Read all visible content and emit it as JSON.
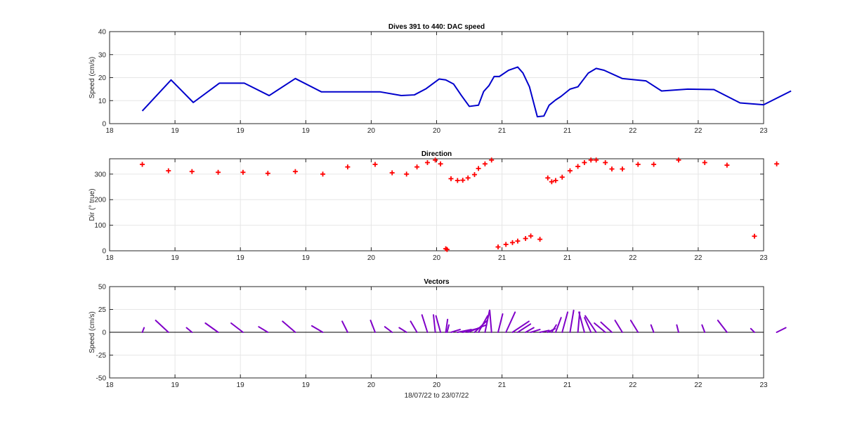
{
  "chart_data": [
    {
      "type": "line",
      "title": "Dives 391 to 440: DAC speed",
      "xlabel": "",
      "ylabel": "Speed (cm/s)",
      "xlim": [
        18.0,
        23.0
      ],
      "ylim": [
        0,
        40
      ],
      "xticks": [
        18,
        18.5,
        19,
        19.5,
        20,
        20.5,
        21,
        21.5,
        22,
        22.5,
        23
      ],
      "xtick_labels": [
        "18",
        "19",
        "19",
        "19",
        "20",
        "20",
        "21",
        "21",
        "22",
        "22",
        "23"
      ],
      "yticks": [
        0,
        10,
        20,
        30,
        40
      ],
      "ytick_labels": [
        "0",
        "10",
        "20",
        "30",
        "40"
      ],
      "grid": true,
      "colors": {
        "line": "#0000cc"
      },
      "series": [
        {
          "x": [
            18.25,
            18.47,
            18.64,
            18.84,
            19.03,
            19.22,
            19.42,
            19.62,
            19.85,
            20.07,
            20.23,
            20.33,
            20.42,
            20.52,
            20.57,
            20.63,
            20.69,
            20.75,
            20.82,
            20.86,
            20.9,
            20.94,
            20.98,
            21.05,
            21.09,
            21.12,
            21.16,
            21.21,
            21.27,
            21.32,
            21.36,
            21.41,
            21.45,
            21.52,
            21.58,
            21.66,
            21.72,
            21.78,
            21.92,
            22.1,
            22.22,
            22.42,
            22.62,
            22.82,
            23.0,
            23.21
          ],
          "y": [
            5.5,
            19.0,
            9.2,
            17.6,
            17.6,
            12.2,
            19.6,
            13.8,
            13.8,
            13.8,
            12.2,
            12.5,
            15.2,
            19.4,
            19.0,
            17.2,
            12.2,
            7.5,
            8.0,
            14.0,
            16.5,
            20.5,
            20.5,
            23.2,
            24.0,
            24.6,
            22.0,
            16.0,
            3.0,
            3.3,
            8.0,
            10.3,
            11.8,
            15.0,
            16.0,
            22.0,
            24.0,
            23.2,
            19.6,
            18.6,
            14.2,
            15.0,
            14.8,
            9.0,
            8.2,
            14.2
          ]
        }
      ]
    },
    {
      "type": "scatter",
      "title": "Direction",
      "xlabel": "",
      "ylabel": "Dir (° true)",
      "xlim": [
        18.0,
        23.0
      ],
      "ylim": [
        0,
        360
      ],
      "xticks": [
        18,
        18.5,
        19,
        19.5,
        20,
        20.5,
        21,
        21.5,
        22,
        22.5,
        23
      ],
      "xtick_labels": [
        "18",
        "19",
        "19",
        "19",
        "20",
        "20",
        "21",
        "21",
        "22",
        "22",
        "23"
      ],
      "yticks": [
        0,
        100,
        200,
        300
      ],
      "ytick_labels": [
        "0",
        "100",
        "200",
        "300"
      ],
      "grid": true,
      "colors": {
        "marker": "#ff0000"
      },
      "series": [
        {
          "x": [
            18.25,
            18.45,
            18.63,
            18.83,
            19.02,
            19.21,
            19.42,
            19.63,
            19.82,
            20.03,
            20.16,
            20.27,
            20.35,
            20.43,
            20.49,
            20.53,
            20.57,
            20.58,
            20.61,
            20.66,
            20.7,
            20.74,
            20.79,
            20.82,
            20.87,
            20.92,
            20.97,
            21.03,
            21.08,
            21.12,
            21.18,
            21.22,
            21.29,
            21.35,
            21.38,
            21.41,
            21.46,
            21.52,
            21.58,
            21.63,
            21.68,
            21.72,
            21.79,
            21.84,
            21.92,
            22.04,
            22.16,
            22.35,
            22.55,
            22.72,
            22.93,
            23.1
          ],
          "y": [
            338,
            313,
            310,
            307,
            307,
            303,
            310,
            300,
            328,
            338,
            305,
            300,
            328,
            345,
            355,
            340,
            8,
            5,
            282,
            275,
            276,
            285,
            298,
            322,
            340,
            355,
            15,
            25,
            32,
            38,
            48,
            58,
            45,
            285,
            270,
            275,
            288,
            313,
            330,
            345,
            355,
            355,
            345,
            320,
            320,
            338,
            338,
            355,
            345,
            335,
            57,
            340
          ]
        }
      ]
    },
    {
      "type": "quiver",
      "title": "Vectors",
      "xlabel": "18/07/22 to 23/07/22",
      "ylabel": "Speed (cm/s)",
      "xlim": [
        18.0,
        23.0
      ],
      "ylim": [
        -50,
        50
      ],
      "xticks": [
        18,
        18.5,
        19,
        19.5,
        20,
        20.5,
        21,
        21.5,
        22,
        22.5,
        23
      ],
      "xtick_labels": [
        "18",
        "19",
        "19",
        "19",
        "20",
        "20",
        "21",
        "21",
        "22",
        "22",
        "23"
      ],
      "yticks": [
        -50,
        -25,
        0,
        25,
        50
      ],
      "ytick_labels": [
        "-50",
        "-25",
        "0",
        "25",
        "50"
      ],
      "grid": true,
      "colors": {
        "vector": "#8000c8",
        "baseline": "#000000"
      },
      "baseline_y": 0,
      "vectors": [
        {
          "x": 18.25,
          "u": 2,
          "v": 5
        },
        {
          "x": 18.45,
          "u": -14,
          "v": 13
        },
        {
          "x": 18.63,
          "u": -6,
          "v": 5
        },
        {
          "x": 18.83,
          "u": -14,
          "v": 10
        },
        {
          "x": 19.02,
          "u": -13,
          "v": 10
        },
        {
          "x": 19.21,
          "u": -10,
          "v": 6
        },
        {
          "x": 19.42,
          "u": -14,
          "v": 12
        },
        {
          "x": 19.63,
          "u": -12,
          "v": 7
        },
        {
          "x": 19.82,
          "u": -6,
          "v": 12
        },
        {
          "x": 20.03,
          "u": -5,
          "v": 13
        },
        {
          "x": 20.16,
          "u": -8,
          "v": 6
        },
        {
          "x": 20.27,
          "u": -8,
          "v": 5
        },
        {
          "x": 20.35,
          "u": -7,
          "v": 12
        },
        {
          "x": 20.43,
          "u": -6,
          "v": 19
        },
        {
          "x": 20.49,
          "u": -2,
          "v": 19
        },
        {
          "x": 20.53,
          "u": -5,
          "v": 18
        },
        {
          "x": 20.57,
          "u": 2,
          "v": 14
        },
        {
          "x": 20.58,
          "u": 2,
          "v": 8
        },
        {
          "x": 20.61,
          "u": 10,
          "v": 3
        },
        {
          "x": 20.66,
          "u": 15,
          "v": 3
        },
        {
          "x": 20.7,
          "u": 20,
          "v": 5
        },
        {
          "x": 20.74,
          "u": 20,
          "v": 8
        },
        {
          "x": 20.79,
          "u": 14,
          "v": 13
        },
        {
          "x": 20.82,
          "u": 10,
          "v": 18
        },
        {
          "x": 20.87,
          "u": 5,
          "v": 24
        },
        {
          "x": 20.92,
          "u": -2,
          "v": 24
        },
        {
          "x": 20.97,
          "u": 5,
          "v": 20
        },
        {
          "x": 21.03,
          "u": 10,
          "v": 22
        },
        {
          "x": 21.08,
          "u": 18,
          "v": 12
        },
        {
          "x": 21.12,
          "u": 14,
          "v": 9
        },
        {
          "x": 21.18,
          "u": 9,
          "v": 5
        },
        {
          "x": 21.22,
          "u": 10,
          "v": 3
        },
        {
          "x": 21.29,
          "u": 10,
          "v": 2
        },
        {
          "x": 21.35,
          "u": 8,
          "v": 4
        },
        {
          "x": 21.38,
          "u": 5,
          "v": 8
        },
        {
          "x": 21.41,
          "u": 6,
          "v": 16
        },
        {
          "x": 21.46,
          "u": 6,
          "v": 22
        },
        {
          "x": 21.52,
          "u": 4,
          "v": 24
        },
        {
          "x": 21.58,
          "u": 2,
          "v": 22
        },
        {
          "x": 21.63,
          "u": -6,
          "v": 22
        },
        {
          "x": 21.68,
          "u": -7,
          "v": 16
        },
        {
          "x": 21.72,
          "u": -12,
          "v": 18
        },
        {
          "x": 21.79,
          "u": -12,
          "v": 10
        },
        {
          "x": 21.84,
          "u": -12,
          "v": 11
        },
        {
          "x": 21.92,
          "u": -8,
          "v": 13
        },
        {
          "x": 22.04,
          "u": -8,
          "v": 13
        },
        {
          "x": 22.16,
          "u": -3,
          "v": 8
        },
        {
          "x": 22.35,
          "u": -2,
          "v": 8
        },
        {
          "x": 22.55,
          "u": -3,
          "v": 8
        },
        {
          "x": 22.72,
          "u": -10,
          "v": 13
        },
        {
          "x": 22.93,
          "u": -4,
          "v": 4
        },
        {
          "x": 23.1,
          "u": 10,
          "v": 5
        }
      ]
    }
  ]
}
